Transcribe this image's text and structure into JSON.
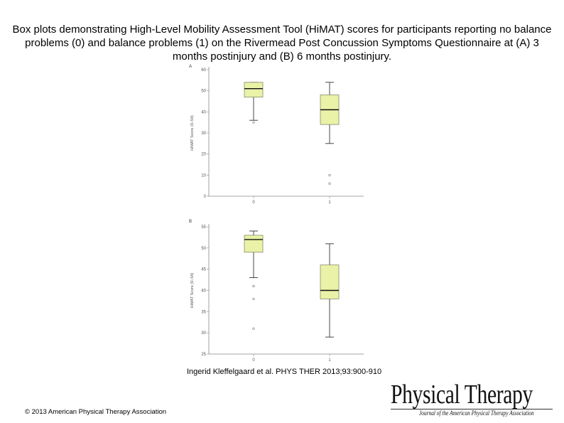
{
  "slide": {
    "title": "Box plots demonstrating High-Level Mobility Assessment Tool (HiMAT) scores for participants reporting no balance problems (0) and balance problems (1) on the Rivermead Post Concussion Symptoms Questionnaire at (A) 3 months postinjury and (B) 6 months postinjury.",
    "citation": "Ingerid Kleffelgaard et al. PHYS THER 2013;93:900-910",
    "copyright": "© 2013 American Physical Therapy Association",
    "logo_main": "Physical Therapy",
    "logo_sub": "Journal of the American Physical Therapy Association"
  },
  "colors": {
    "box_fill": "#e9f2a6",
    "box_stroke": "#8a8a6a",
    "axis": "#888888",
    "whisker": "#333333"
  },
  "chart_data": [
    {
      "type": "box",
      "panel": "A",
      "ylabel": "HiMAT Score (0–54)",
      "categories": [
        "0",
        "1"
      ],
      "ylim": [
        0,
        60
      ],
      "yticks": [
        0,
        10,
        20,
        30,
        40,
        50,
        60
      ],
      "boxes": [
        {
          "category": "0",
          "whisker_low": 36,
          "q1": 47,
          "median": 51,
          "q3": 54,
          "whisker_high": 54,
          "outliers": [
            35
          ]
        },
        {
          "category": "1",
          "whisker_low": 25,
          "q1": 34,
          "median": 41,
          "q3": 48,
          "whisker_high": 54,
          "outliers": [
            10,
            6
          ]
        }
      ]
    },
    {
      "type": "box",
      "panel": "B",
      "ylabel": "HiMAT Score (0–54)",
      "categories": [
        "0",
        "1"
      ],
      "ylim": [
        25,
        55
      ],
      "yticks": [
        25,
        30,
        35,
        40,
        45,
        50,
        55
      ],
      "boxes": [
        {
          "category": "0",
          "whisker_low": 43,
          "q1": 49,
          "median": 52,
          "q3": 53,
          "whisker_high": 54,
          "outliers": [
            41,
            38,
            31
          ]
        },
        {
          "category": "1",
          "whisker_low": 29,
          "q1": 38,
          "median": 40,
          "q3": 46,
          "whisker_high": 51,
          "outliers": []
        }
      ]
    }
  ]
}
